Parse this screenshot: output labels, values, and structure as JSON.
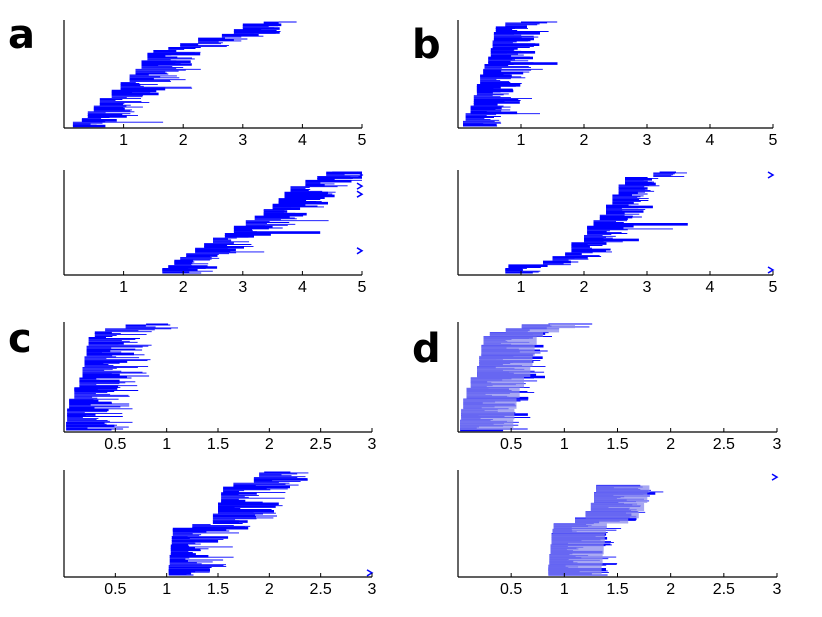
{
  "figure": {
    "letters": [
      "a",
      "b",
      "c",
      "d"
    ]
  },
  "colors": {
    "lines": "#0000ff",
    "axes": "#000000",
    "fill_d": "#8a8aee"
  },
  "chart_data": [
    {
      "id": "a-top",
      "panel": "a",
      "type": "line",
      "xlim": [
        0,
        5
      ],
      "xticks": [
        1,
        2,
        3,
        4,
        5
      ],
      "xtick_labels": [
        "1",
        "2",
        "3",
        "4",
        "5"
      ],
      "steps": [
        [
          0.15,
          0
        ],
        [
          0.3,
          0.04
        ],
        [
          0.4,
          0.08
        ],
        [
          0.5,
          0.14
        ],
        [
          0.6,
          0.2
        ],
        [
          0.8,
          0.27
        ],
        [
          0.95,
          0.34
        ],
        [
          1.1,
          0.42
        ],
        [
          1.2,
          0.5
        ],
        [
          1.3,
          0.55
        ],
        [
          1.4,
          0.62
        ],
        [
          1.5,
          0.7
        ],
        [
          1.75,
          0.73
        ],
        [
          1.95,
          0.76
        ],
        [
          2.25,
          0.8
        ],
        [
          2.65,
          0.85
        ],
        [
          2.85,
          0.88
        ],
        [
          3.0,
          0.93
        ],
        [
          3.35,
          0.98
        ],
        [
          3.6,
          1.0
        ]
      ],
      "max_tail": 1.6,
      "fill": false,
      "tail_width": 0.6,
      "marker_y": []
    },
    {
      "id": "a-bottom",
      "panel": "a",
      "type": "line",
      "xlim": [
        0,
        5
      ],
      "xticks": [
        1,
        2,
        3,
        4,
        5
      ],
      "xtick_labels": [
        "1",
        "2",
        "3",
        "4",
        "5"
      ],
      "steps": [
        [
          1.65,
          0
        ],
        [
          1.75,
          0.04
        ],
        [
          1.85,
          0.08
        ],
        [
          1.95,
          0.12
        ],
        [
          2.05,
          0.16
        ],
        [
          2.2,
          0.2
        ],
        [
          2.35,
          0.25
        ],
        [
          2.5,
          0.3
        ],
        [
          2.7,
          0.35
        ],
        [
          2.85,
          0.4
        ],
        [
          3.05,
          0.46
        ],
        [
          3.2,
          0.52
        ],
        [
          3.35,
          0.57
        ],
        [
          3.5,
          0.63
        ],
        [
          3.6,
          0.68
        ],
        [
          3.7,
          0.74
        ],
        [
          3.8,
          0.8
        ],
        [
          4.05,
          0.86
        ],
        [
          4.25,
          0.91
        ],
        [
          4.4,
          0.96
        ],
        [
          4.5,
          1.0
        ]
      ],
      "max_tail": 1.0,
      "fill": false,
      "tail_width": 0.6,
      "marker_y": [
        0.22,
        0.78,
        0.86,
        0.97
      ]
    },
    {
      "id": "b-top",
      "panel": "b",
      "type": "line",
      "xlim": [
        0,
        5
      ],
      "xticks": [
        1,
        2,
        3,
        4,
        5
      ],
      "xtick_labels": [
        "1",
        "2",
        "3",
        "4",
        "5"
      ],
      "steps": [
        [
          0.08,
          0
        ],
        [
          0.12,
          0.05
        ],
        [
          0.2,
          0.12
        ],
        [
          0.25,
          0.2
        ],
        [
          0.3,
          0.3
        ],
        [
          0.35,
          0.4
        ],
        [
          0.4,
          0.5
        ],
        [
          0.42,
          0.55
        ],
        [
          0.48,
          0.6
        ],
        [
          0.52,
          0.66
        ],
        [
          0.55,
          0.74
        ],
        [
          0.57,
          0.82
        ],
        [
          0.6,
          0.9
        ],
        [
          0.75,
          0.95
        ],
        [
          1.0,
          1.0
        ]
      ],
      "max_tail": 1.0,
      "fill": false,
      "tail_width": 0.5,
      "marker_y": []
    },
    {
      "id": "b-bottom",
      "panel": "b",
      "type": "line",
      "xlim": [
        0,
        5
      ],
      "xticks": [
        1,
        2,
        3,
        4,
        5
      ],
      "xtick_labels": [
        "1",
        "2",
        "3",
        "4",
        "5"
      ],
      "steps": [
        [
          0.75,
          0
        ],
        [
          0.8,
          0.04
        ],
        [
          1.35,
          0.08
        ],
        [
          1.5,
          0.12
        ],
        [
          1.7,
          0.16
        ],
        [
          1.8,
          0.2
        ],
        [
          2.0,
          0.3
        ],
        [
          2.05,
          0.38
        ],
        [
          2.15,
          0.46
        ],
        [
          2.25,
          0.52
        ],
        [
          2.35,
          0.58
        ],
        [
          2.45,
          0.68
        ],
        [
          2.55,
          0.78
        ],
        [
          2.65,
          0.88
        ],
        [
          3.1,
          0.95
        ],
        [
          3.2,
          1.0
        ]
      ],
      "max_tail": 2.0,
      "fill": false,
      "tail_width": 0.4,
      "marker_y": [
        0.03,
        0.97
      ]
    },
    {
      "id": "c-top",
      "panel": "c",
      "type": "line",
      "xlim": [
        0,
        3
      ],
      "xticks": [
        0.5,
        1,
        1.5,
        2,
        2.5,
        3
      ],
      "xtick_labels": [
        "0.5",
        "1",
        "1.5",
        "2",
        "2.5",
        "3"
      ],
      "steps": [
        [
          0.02,
          0
        ],
        [
          0.03,
          0.08
        ],
        [
          0.05,
          0.2
        ],
        [
          0.1,
          0.3
        ],
        [
          0.15,
          0.4
        ],
        [
          0.18,
          0.5
        ],
        [
          0.2,
          0.6
        ],
        [
          0.22,
          0.7
        ],
        [
          0.24,
          0.8
        ],
        [
          0.3,
          0.88
        ],
        [
          0.4,
          0.92
        ],
        [
          0.6,
          0.96
        ],
        [
          0.8,
          1.0
        ]
      ],
      "max_tail": 0.5,
      "fill": false,
      "tail_width": 0.5,
      "marker_y": []
    },
    {
      "id": "c-bottom",
      "panel": "c",
      "type": "line",
      "xlim": [
        0,
        3
      ],
      "xticks": [
        0.5,
        1,
        1.5,
        2,
        2.5,
        3
      ],
      "xtick_labels": [
        "0.5",
        "1",
        "1.5",
        "2",
        "2.5",
        "3"
      ],
      "steps": [
        [
          1.02,
          0
        ],
        [
          1.03,
          0.1
        ],
        [
          1.04,
          0.2
        ],
        [
          1.05,
          0.3
        ],
        [
          1.06,
          0.38
        ],
        [
          1.25,
          0.45
        ],
        [
          1.45,
          0.5
        ],
        [
          1.5,
          0.6
        ],
        [
          1.53,
          0.7
        ],
        [
          1.55,
          0.8
        ],
        [
          1.65,
          0.85
        ],
        [
          1.85,
          0.9
        ],
        [
          1.9,
          0.95
        ],
        [
          1.95,
          1.0
        ]
      ],
      "max_tail": 0.15,
      "fill": false,
      "tail_width": 0.5,
      "marker_y": [
        0.02
      ]
    },
    {
      "id": "d-top",
      "panel": "d",
      "type": "area",
      "xlim": [
        0,
        3
      ],
      "xticks": [
        0.5,
        1,
        1.5,
        2,
        2.5,
        3
      ],
      "xtick_labels": [
        "0.5",
        "1",
        "1.5",
        "2",
        "2.5",
        "3"
      ],
      "steps": [
        [
          0.02,
          0
        ],
        [
          0.03,
          0.1
        ],
        [
          0.05,
          0.2
        ],
        [
          0.08,
          0.3
        ],
        [
          0.12,
          0.4
        ],
        [
          0.18,
          0.5
        ],
        [
          0.2,
          0.6
        ],
        [
          0.22,
          0.7
        ],
        [
          0.24,
          0.8
        ],
        [
          0.3,
          0.88
        ],
        [
          0.45,
          0.92
        ],
        [
          0.6,
          0.96
        ],
        [
          0.85,
          1.0
        ]
      ],
      "max_tail": 0.25,
      "fill": true,
      "tail_width": 0.5,
      "marker_y": []
    },
    {
      "id": "d-bottom",
      "panel": "d",
      "type": "area",
      "xlim": [
        0,
        3
      ],
      "xticks": [
        0.5,
        1,
        1.5,
        2,
        2.5,
        3
      ],
      "xtick_labels": [
        "0.5",
        "1",
        "1.5",
        "2",
        "2.5",
        "3"
      ],
      "steps": [
        [
          0.85,
          0
        ],
        [
          0.86,
          0.1
        ],
        [
          0.87,
          0.2
        ],
        [
          0.88,
          0.3
        ],
        [
          0.89,
          0.4
        ],
        [
          0.9,
          0.45
        ],
        [
          1.1,
          0.5
        ],
        [
          1.2,
          0.55
        ],
        [
          1.25,
          0.62
        ],
        [
          1.28,
          0.7
        ],
        [
          1.3,
          0.8
        ],
        [
          1.32,
          0.87
        ]
      ],
      "max_tail": 0.1,
      "fill": true,
      "tail_width": 0.5,
      "marker_y": [
        0.95
      ]
    }
  ]
}
